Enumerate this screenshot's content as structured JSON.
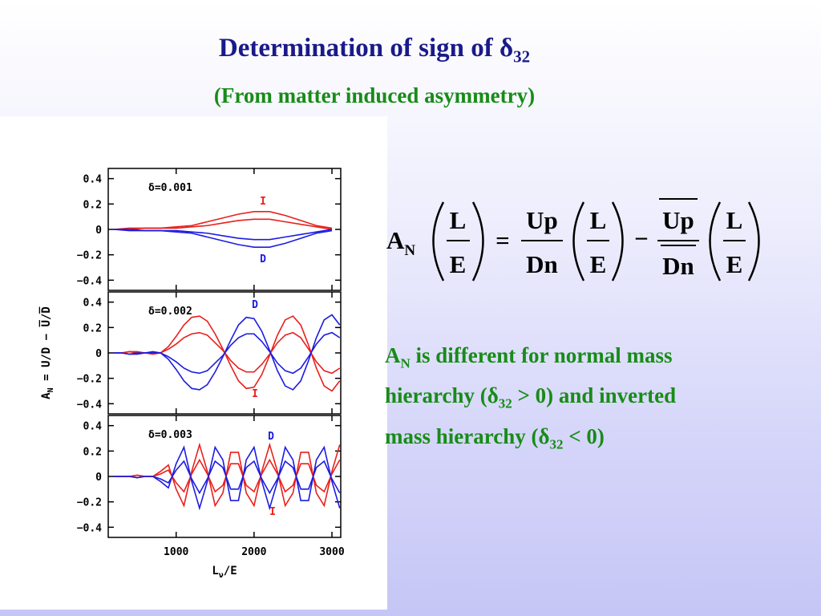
{
  "slide": {
    "title": {
      "main": "Determination of sign of δ",
      "sub": "32"
    },
    "subtitle": "(From matter induced asymmetry)",
    "formula": {
      "lhs_main": "A",
      "lhs_sub": "N",
      "num": "L",
      "den": "E",
      "eq": "=",
      "up": "Up",
      "dn": "Dn",
      "minus": "−"
    },
    "note": [
      "A",
      "N",
      " is different for normal mass",
      "hierarchy (δ",
      "32",
      " > 0) and inverted",
      "mass hierarchy (δ",
      "32",
      " < 0)"
    ]
  },
  "figure": {
    "y_label": {
      "main": "A",
      "sub": "N",
      "rest": " = U/D − U̅/D̅"
    },
    "x_label": {
      "main": "L",
      "sub": "ν",
      "rest": "/E"
    }
  },
  "chart_data": [
    {
      "type": "line",
      "label": "δ=0.001",
      "xlim": [
        128,
        3113
      ],
      "ylim": [
        -0.48,
        0.48
      ],
      "xticks": [
        1000,
        2000,
        3000
      ],
      "yticks": [
        0.4,
        0.2,
        0,
        {
          "value": -0.2,
          "label": "−0.2"
        },
        {
          "value": -0.4,
          "label": "−0.4"
        }
      ],
      "annotations": [
        {
          "text": "I",
          "color": "#e8201c"
        },
        {
          "text": "D",
          "color": "#1c1ce0"
        }
      ],
      "x": [
        200,
        400,
        600,
        800,
        1000,
        1200,
        1400,
        1600,
        1800,
        2000,
        2200,
        2400,
        2600,
        2800,
        3000
      ],
      "series": [
        {
          "color": "#e8201c",
          "values": [
            0,
            0.01,
            0.01,
            0.01,
            0.02,
            0.03,
            0.06,
            0.09,
            0.12,
            0.14,
            0.14,
            0.11,
            0.07,
            0.03,
            0.01
          ]
        },
        {
          "color": "#e8201c",
          "values": [
            0,
            0,
            0.01,
            0.01,
            0.01,
            0.02,
            0.03,
            0.05,
            0.07,
            0.08,
            0.08,
            0.06,
            0.04,
            0.02,
            0
          ]
        },
        {
          "color": "#1c1ce0",
          "values": [
            0,
            -0.01,
            -0.01,
            -0.01,
            -0.02,
            -0.03,
            -0.06,
            -0.09,
            -0.12,
            -0.14,
            -0.14,
            -0.11,
            -0.07,
            -0.03,
            -0.01
          ]
        },
        {
          "color": "#1c1ce0",
          "values": [
            0,
            0,
            -0.01,
            -0.01,
            -0.01,
            -0.02,
            -0.03,
            -0.05,
            -0.07,
            -0.08,
            -0.08,
            -0.06,
            -0.04,
            -0.02,
            0
          ]
        }
      ]
    },
    {
      "type": "line",
      "label": "δ=0.002",
      "xlim": [
        128,
        3113
      ],
      "ylim": [
        -0.48,
        0.48
      ],
      "xticks": [
        1000,
        2000,
        3000
      ],
      "yticks": [
        0.4,
        0.2,
        0,
        {
          "value": -0.2,
          "label": "−0.2"
        },
        {
          "value": -0.4,
          "label": "−0.4"
        }
      ],
      "annotations": [
        {
          "text": "D",
          "color": "#1c1ce0"
        },
        {
          "text": "I",
          "color": "#e8201c"
        }
      ],
      "x": [
        200,
        300,
        400,
        500,
        600,
        700,
        800,
        900,
        1000,
        1100,
        1200,
        1300,
        1400,
        1500,
        1600,
        1700,
        1800,
        1900,
        2000,
        2100,
        2200,
        2300,
        2400,
        2500,
        2600,
        2700,
        2800,
        2900,
        3000,
        3100
      ],
      "series": [
        {
          "color": "#e8201c",
          "values": [
            0,
            0,
            0.01,
            0.01,
            0,
            -0.01,
            0,
            0.05,
            0.13,
            0.22,
            0.28,
            0.29,
            0.25,
            0.15,
            0.03,
            -0.1,
            -0.22,
            -0.28,
            -0.27,
            -0.17,
            -0.02,
            0.14,
            0.26,
            0.29,
            0.22,
            0.06,
            -0.12,
            -0.26,
            -0.3,
            -0.22
          ]
        },
        {
          "color": "#e8201c",
          "values": [
            0,
            0,
            0.01,
            0,
            0,
            0,
            0,
            0.03,
            0.07,
            0.12,
            0.15,
            0.16,
            0.14,
            0.08,
            0.02,
            -0.06,
            -0.12,
            -0.15,
            -0.15,
            -0.09,
            -0.01,
            0.08,
            0.14,
            0.16,
            0.12,
            0.03,
            -0.07,
            -0.14,
            -0.16,
            -0.12
          ]
        },
        {
          "color": "#1c1ce0",
          "values": [
            0,
            0,
            -0.01,
            -0.01,
            0,
            0.01,
            0,
            -0.05,
            -0.13,
            -0.22,
            -0.28,
            -0.29,
            -0.25,
            -0.15,
            -0.03,
            0.1,
            0.22,
            0.28,
            0.27,
            0.17,
            0.02,
            -0.14,
            -0.26,
            -0.29,
            -0.22,
            -0.06,
            0.12,
            0.26,
            0.3,
            0.22
          ]
        },
        {
          "color": "#1c1ce0",
          "values": [
            0,
            0,
            -0.01,
            0,
            0,
            0,
            0,
            -0.03,
            -0.07,
            -0.12,
            -0.15,
            -0.16,
            -0.14,
            -0.08,
            -0.02,
            0.06,
            0.12,
            0.15,
            0.15,
            0.09,
            0.01,
            -0.08,
            -0.14,
            -0.16,
            -0.12,
            -0.03,
            0.07,
            0.14,
            0.16,
            0.12
          ]
        }
      ]
    },
    {
      "type": "line",
      "label": "δ=0.003",
      "xlim": [
        128,
        3113
      ],
      "ylim": [
        -0.48,
        0.48
      ],
      "xticks": [
        1000,
        2000,
        3000
      ],
      "yticks": [
        0.4,
        0.2,
        0,
        {
          "value": -0.2,
          "label": "−0.2"
        },
        {
          "value": -0.4,
          "label": "−0.4"
        }
      ],
      "annotations": [
        {
          "text": "D",
          "color": "#1c1ce0"
        },
        {
          "text": "I",
          "color": "#e8201c"
        }
      ],
      "x": [
        200,
        300,
        400,
        500,
        600,
        700,
        800,
        900,
        1000,
        1100,
        1200,
        1300,
        1400,
        1500,
        1600,
        1700,
        1800,
        1900,
        2000,
        2100,
        2200,
        2300,
        2400,
        2500,
        2600,
        2700,
        2800,
        2900,
        3000,
        3100
      ],
      "series": [
        {
          "color": "#e8201c",
          "values": [
            0,
            0,
            0,
            0.01,
            0,
            0,
            0.04,
            0.09,
            -0.1,
            -0.23,
            0.04,
            0.25,
            0.04,
            -0.23,
            -0.13,
            0.19,
            0.19,
            -0.13,
            -0.23,
            0.04,
            0.25,
            0.04,
            -0.23,
            -0.13,
            0.19,
            0.19,
            -0.13,
            -0.23,
            0.04,
            0.25
          ]
        },
        {
          "color": "#e8201c",
          "values": [
            0,
            0,
            0,
            0.01,
            0,
            0,
            0.02,
            0.05,
            -0.05,
            -0.12,
            0.02,
            0.13,
            0.02,
            -0.12,
            -0.07,
            0.1,
            0.1,
            -0.07,
            -0.12,
            0.02,
            0.13,
            0.02,
            -0.12,
            -0.07,
            0.1,
            0.1,
            -0.07,
            -0.12,
            0.02,
            0.13
          ]
        },
        {
          "color": "#1c1ce0",
          "values": [
            0,
            0,
            0,
            -0.01,
            0,
            0,
            -0.04,
            -0.09,
            0.1,
            0.23,
            -0.04,
            -0.25,
            -0.04,
            0.23,
            0.13,
            -0.19,
            -0.19,
            0.13,
            0.23,
            -0.04,
            -0.25,
            -0.04,
            0.23,
            0.13,
            -0.19,
            -0.19,
            0.13,
            0.23,
            -0.04,
            -0.25
          ]
        },
        {
          "color": "#1c1ce0",
          "values": [
            0,
            0,
            0,
            -0.01,
            0,
            0,
            -0.02,
            -0.05,
            0.05,
            0.12,
            -0.02,
            -0.13,
            -0.02,
            0.12,
            0.07,
            -0.1,
            -0.1,
            0.07,
            0.12,
            -0.02,
            -0.13,
            -0.02,
            0.12,
            0.07,
            -0.1,
            -0.1,
            0.07,
            0.12,
            -0.02,
            -0.13
          ]
        }
      ]
    }
  ]
}
